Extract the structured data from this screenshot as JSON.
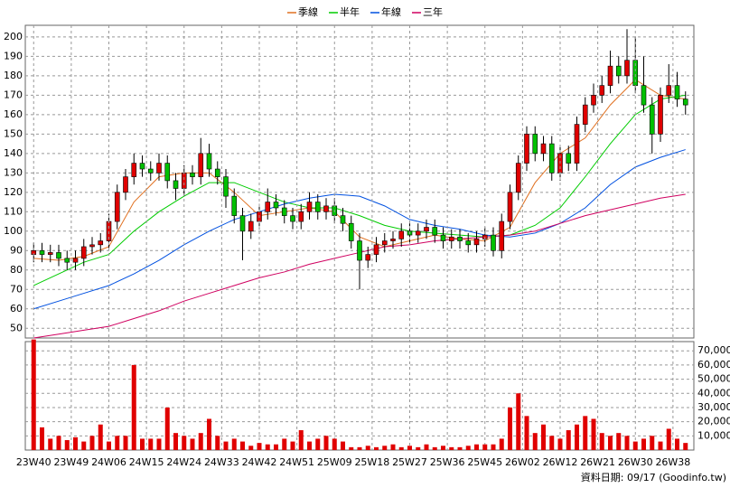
{
  "chart_data": [
    {
      "type": "candlestick",
      "xlim": [
        -2,
        158
      ],
      "ylim": [
        45,
        206
      ],
      "yticks": [
        50,
        60,
        70,
        80,
        90,
        100,
        110,
        120,
        130,
        140,
        150,
        160,
        170,
        180,
        190,
        200
      ],
      "grid": true,
      "up_color": "#e00000",
      "down_color": "#00c000",
      "series": [
        {
          "x": [
            0,
            2,
            4,
            6,
            8,
            10,
            12,
            14,
            16,
            18,
            20,
            22,
            24,
            26,
            28,
            30,
            32,
            34,
            36,
            38,
            40,
            42,
            44,
            46,
            48,
            50,
            52,
            54,
            56,
            58,
            60,
            62,
            64,
            66,
            68,
            70,
            72,
            74,
            76,
            78,
            80,
            82,
            84,
            86,
            88,
            90,
            92,
            94,
            96,
            98,
            100,
            102,
            104,
            106,
            108,
            110,
            112,
            114,
            116,
            118,
            120,
            122,
            124,
            126,
            128,
            130,
            132,
            134,
            136,
            138,
            140,
            142,
            144,
            146,
            148,
            150,
            152,
            154,
            156
          ],
          "open": [
            88,
            90,
            88,
            89,
            86,
            84,
            86,
            92,
            93,
            95,
            105,
            120,
            128,
            135,
            132,
            130,
            135,
            126,
            122,
            130,
            128,
            140,
            132,
            128,
            118,
            108,
            100,
            105,
            110,
            115,
            112,
            108,
            105,
            110,
            115,
            110,
            113,
            108,
            104,
            95,
            85,
            88,
            93,
            95,
            96,
            100,
            98,
            100,
            102,
            98,
            95,
            97,
            95,
            93,
            96,
            98,
            90,
            105,
            120,
            135,
            150,
            140,
            145,
            130,
            140,
            135,
            155,
            165,
            170,
            175,
            185,
            180,
            188,
            175,
            165,
            150,
            170,
            175,
            168
          ],
          "high": [
            94,
            94,
            93,
            93,
            90,
            90,
            96,
            97,
            99,
            109,
            124,
            132,
            140,
            139,
            136,
            140,
            139,
            130,
            134,
            134,
            148,
            145,
            136,
            132,
            122,
            112,
            109,
            114,
            122,
            119,
            116,
            112,
            114,
            120,
            119,
            117,
            117,
            112,
            108,
            99,
            92,
            97,
            99,
            100,
            104,
            104,
            104,
            106,
            106,
            102,
            101,
            101,
            99,
            100,
            102,
            102,
            109,
            124,
            139,
            154,
            154,
            149,
            149,
            144,
            144,
            159,
            169,
            176,
            180,
            193,
            190,
            204,
            200,
            190,
            169,
            174,
            186,
            182,
            172
          ],
          "low": [
            84,
            84,
            84,
            82,
            80,
            80,
            82,
            88,
            89,
            91,
            101,
            116,
            124,
            128,
            126,
            126,
            122,
            116,
            118,
            124,
            124,
            128,
            124,
            112,
            104,
            85,
            96,
            101,
            106,
            108,
            104,
            101,
            101,
            106,
            106,
            106,
            104,
            100,
            91,
            70,
            81,
            84,
            89,
            91,
            92,
            94,
            94,
            96,
            94,
            91,
            91,
            91,
            89,
            89,
            92,
            87,
            86,
            101,
            116,
            131,
            136,
            136,
            126,
            126,
            131,
            131,
            151,
            161,
            166,
            171,
            176,
            176,
            171,
            161,
            140,
            146,
            166,
            164,
            160
          ],
          "close": [
            90,
            88,
            89,
            86,
            84,
            86,
            92,
            93,
            95,
            105,
            120,
            128,
            135,
            132,
            130,
            135,
            126,
            122,
            130,
            128,
            140,
            132,
            128,
            118,
            108,
            100,
            105,
            110,
            115,
            112,
            108,
            105,
            110,
            115,
            110,
            113,
            108,
            104,
            95,
            85,
            88,
            93,
            95,
            96,
            100,
            98,
            100,
            102,
            98,
            95,
            97,
            95,
            93,
            96,
            98,
            90,
            105,
            120,
            135,
            150,
            140,
            145,
            130,
            140,
            135,
            155,
            165,
            170,
            175,
            185,
            180,
            188,
            175,
            165,
            150,
            170,
            175,
            168,
            165
          ]
        }
      ],
      "lines": [
        {
          "name": "季線",
          "color": "#e07020",
          "x": [
            0,
            6,
            12,
            18,
            24,
            30,
            36,
            42,
            48,
            54,
            60,
            66,
            72,
            78,
            84,
            90,
            96,
            102,
            108,
            114,
            120,
            126,
            132,
            138,
            144,
            150,
            156
          ],
          "values": [
            86,
            85,
            87,
            92,
            115,
            128,
            130,
            130,
            120,
            108,
            110,
            112,
            110,
            97,
            92,
            95,
            98,
            96,
            95,
            102,
            125,
            140,
            148,
            165,
            178,
            170,
            168
          ]
        },
        {
          "name": "半年",
          "color": "#00cc00",
          "x": [
            0,
            6,
            12,
            18,
            24,
            30,
            36,
            42,
            48,
            54,
            60,
            66,
            72,
            78,
            84,
            90,
            96,
            102,
            108,
            114,
            120,
            126,
            132,
            138,
            144,
            150,
            156
          ],
          "values": [
            72,
            78,
            84,
            88,
            100,
            110,
            118,
            125,
            125,
            120,
            115,
            112,
            112,
            108,
            103,
            100,
            99,
            98,
            97,
            98,
            103,
            112,
            128,
            145,
            160,
            168,
            170
          ]
        },
        {
          "name": "年線",
          "color": "#0050e0",
          "x": [
            0,
            6,
            12,
            18,
            24,
            30,
            36,
            42,
            48,
            54,
            60,
            66,
            72,
            78,
            84,
            90,
            96,
            102,
            108,
            114,
            120,
            126,
            132,
            138,
            144,
            150,
            156
          ],
          "values": [
            60,
            64,
            68,
            72,
            78,
            85,
            93,
            100,
            106,
            110,
            114,
            117,
            119,
            118,
            113,
            106,
            103,
            101,
            98,
            97,
            99,
            104,
            112,
            124,
            133,
            138,
            142
          ]
        },
        {
          "name": "三年",
          "color": "#d00060",
          "x": [
            0,
            6,
            12,
            18,
            24,
            30,
            36,
            42,
            48,
            54,
            60,
            66,
            72,
            78,
            84,
            90,
            96,
            102,
            108,
            114,
            120,
            126,
            132,
            138,
            144,
            150,
            156
          ],
          "values": [
            45,
            47,
            49,
            51,
            55,
            59,
            64,
            68,
            72,
            76,
            79,
            83,
            86,
            89,
            92,
            93,
            95,
            96,
            97,
            98,
            100,
            104,
            108,
            111,
            114,
            117,
            119
          ]
        }
      ]
    },
    {
      "type": "bar",
      "color": "#e00000",
      "xlim": [
        -2,
        158
      ],
      "ylim": [
        0,
        76500
      ],
      "yticks": [
        {
          "value": 10000,
          "label": "10,000"
        },
        {
          "value": 20000,
          "label": "20,000"
        },
        {
          "value": 30000,
          "label": "30,000"
        },
        {
          "value": 40000,
          "label": "40,000"
        },
        {
          "value": 50000,
          "label": "50,000"
        },
        {
          "value": 60000,
          "label": "60,000"
        },
        {
          "value": 70000,
          "label": "70,000"
        }
      ],
      "x": [
        0,
        2,
        4,
        6,
        8,
        10,
        12,
        14,
        16,
        18,
        20,
        22,
        24,
        26,
        28,
        30,
        32,
        34,
        36,
        38,
        40,
        42,
        44,
        46,
        48,
        50,
        52,
        54,
        56,
        58,
        60,
        62,
        64,
        66,
        68,
        70,
        72,
        74,
        76,
        78,
        80,
        82,
        84,
        86,
        88,
        90,
        92,
        94,
        96,
        98,
        100,
        102,
        104,
        106,
        108,
        110,
        112,
        114,
        116,
        118,
        120,
        122,
        124,
        126,
        128,
        130,
        132,
        134,
        136,
        138,
        140,
        142,
        144,
        146,
        148,
        150,
        152,
        154,
        156
      ],
      "values": [
        78000,
        16000,
        8000,
        10000,
        7000,
        9000,
        6000,
        10000,
        18000,
        6000,
        10000,
        10000,
        60000,
        8000,
        8000,
        8000,
        30000,
        12000,
        10000,
        8000,
        12000,
        22000,
        10000,
        6000,
        8000,
        6000,
        3000,
        5000,
        4000,
        4000,
        8000,
        6000,
        14000,
        6000,
        8000,
        10000,
        8000,
        6000,
        2000,
        2000,
        3000,
        2000,
        3000,
        4000,
        2000,
        3000,
        2000,
        4000,
        2000,
        3000,
        2000,
        2000,
        3000,
        4000,
        4000,
        4000,
        8000,
        30000,
        40000,
        24000,
        12000,
        18000,
        10000,
        8000,
        14000,
        18000,
        24000,
        22000,
        12000,
        10000,
        12000,
        10000,
        6000,
        8000,
        10000,
        6000,
        15000,
        8000,
        5000
      ],
      "xticks": [
        {
          "value": 0,
          "label": "23W40"
        },
        {
          "value": 9,
          "label": "23W49"
        },
        {
          "value": 18,
          "label": "24W06"
        },
        {
          "value": 27,
          "label": "24W15"
        },
        {
          "value": 36,
          "label": "24W24"
        },
        {
          "value": 45,
          "label": "24W33"
        },
        {
          "value": 54,
          "label": "24W42"
        },
        {
          "value": 63,
          "label": "24W51"
        },
        {
          "value": 72,
          "label": "25W09"
        },
        {
          "value": 81,
          "label": "25W18"
        },
        {
          "value": 90,
          "label": "25W27"
        },
        {
          "value": 99,
          "label": "25W36"
        },
        {
          "value": 108,
          "label": "25W45"
        },
        {
          "value": 117,
          "label": "26W02"
        },
        {
          "value": 126,
          "label": "26W12"
        },
        {
          "value": 135,
          "label": "26W21"
        },
        {
          "value": 144,
          "label": "26W30"
        },
        {
          "value": 153,
          "label": "26W38"
        }
      ]
    }
  ],
  "footer": "資料日期: 09/17  (Goodinfo.tw)"
}
